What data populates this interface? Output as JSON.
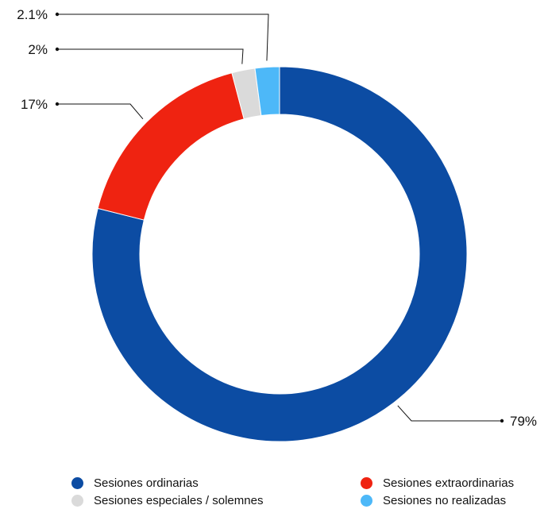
{
  "chart_data": {
    "type": "pie",
    "variant": "donut",
    "categories": [
      "Sesiones ordinarias",
      "Sesiones extraordinarias",
      "Sesiones especiales / solemnes",
      "Sesiones no realizadas"
    ],
    "values": [
      79,
      17,
      2,
      2.1
    ],
    "labels": [
      "79%",
      "17%",
      "2%",
      "2.1%"
    ],
    "colors": [
      "#0c4ca3",
      "#ef2311",
      "#dadada",
      "#4db8f8"
    ],
    "legend_position": "bottom",
    "title": "",
    "start_angle_deg": 0,
    "direction": "clockwise"
  }
}
